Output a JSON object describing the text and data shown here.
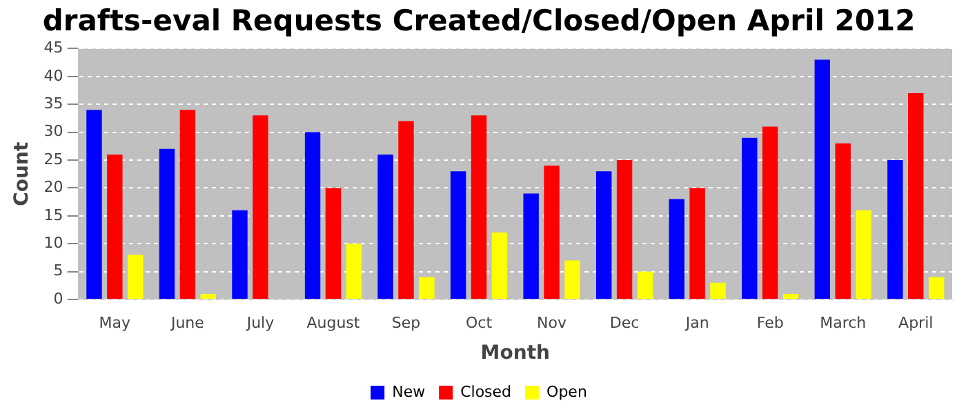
{
  "chart_data": {
    "type": "bar",
    "title": "drafts-eval Requests Created/Closed/Open April 2012",
    "xlabel": "Month",
    "ylabel": "Count",
    "categories": [
      "May",
      "June",
      "July",
      "August",
      "Sep",
      "Oct",
      "Nov",
      "Dec",
      "Jan",
      "Feb",
      "March",
      "April"
    ],
    "series": [
      {
        "name": "New",
        "color": "#0000ff",
        "values": [
          34,
          27,
          16,
          30,
          26,
          23,
          19,
          23,
          18,
          29,
          43,
          25
        ]
      },
      {
        "name": "Closed",
        "color": "#ff0000",
        "values": [
          26,
          34,
          33,
          20,
          32,
          33,
          24,
          25,
          20,
          31,
          28,
          37
        ]
      },
      {
        "name": "Open",
        "color": "#ffff00",
        "values": [
          8,
          1,
          0,
          10,
          4,
          12,
          7,
          5,
          3,
          1,
          16,
          4
        ]
      }
    ],
    "ylim": [
      0,
      45
    ],
    "yticks": [
      0,
      5,
      10,
      15,
      20,
      25,
      30,
      35,
      40,
      45
    ],
    "grid": "y",
    "legend": "bottom"
  }
}
